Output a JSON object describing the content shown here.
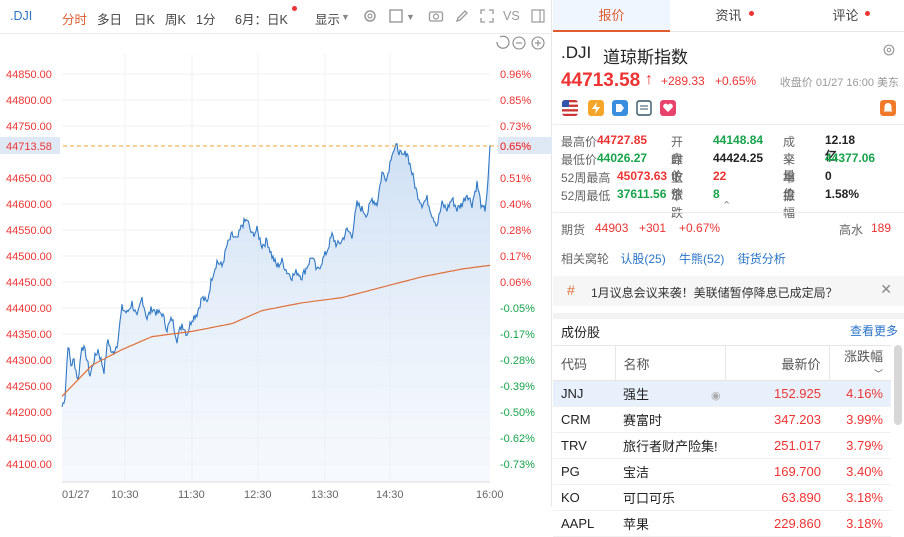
{
  "toolbar": {
    "symbol": ".DJI",
    "items": [
      "分时",
      "多日",
      "日K",
      "周K",
      "1分",
      "6月：日K",
      "显示",
      "VS"
    ]
  },
  "chart": {
    "left_axis": [
      "44850.00",
      "44800.00",
      "44750.00",
      "44713.58",
      "44650.00",
      "44600.00",
      "44550.00",
      "44500.00",
      "44450.00",
      "44400.00",
      "44350.00",
      "44300.00",
      "44250.00",
      "44200.00",
      "44150.00",
      "44100.00"
    ],
    "right_axis": [
      "0.96%",
      "0.85%",
      "0.73%",
      "0.65%",
      "0.51%",
      "0.40%",
      "0.28%",
      "0.17%",
      "0.06%",
      "-0.05%",
      "-0.17%",
      "-0.28%",
      "-0.39%",
      "-0.50%",
      "-0.62%",
      "-0.73%"
    ],
    "x_labels": [
      "01/27",
      "10:30",
      "11:30",
      "12:30",
      "13:30",
      "14:30",
      "16:00"
    ],
    "current": "44713.58"
  },
  "tabs": [
    "报价",
    "资讯",
    "评论"
  ],
  "quote": {
    "symbol": ".DJI",
    "name": "道琼斯指数",
    "price": "44713.58",
    "change": "+289.33",
    "pct": "+0.65%",
    "stamp": "收盘价 01/27 16:00 美东"
  },
  "stats": {
    "high_lbl": "最高价",
    "high": "44727.85",
    "open_lbl": "开盘价",
    "open": "44148.84",
    "vol_lbl": "成交量",
    "vol": "12.18亿",
    "low_lbl": "最低价",
    "low": "44026.27",
    "prev_lbl": "昨收价",
    "prev": "44424.25",
    "avg_lbl": "平均价",
    "avg": "44377.06",
    "w52h_lbl": "52周最高",
    "w52h": "45073.63",
    "up_lbl": "上　涨",
    "up": "22",
    "flat_lbl": "平　盘",
    "flat": "0",
    "w52l_lbl": "52周最低",
    "w52l": "37611.56",
    "down_lbl": "下　跌",
    "down": "8",
    "amp_lbl": "振　幅",
    "amp": "1.58%"
  },
  "futures": {
    "lbl": "期货",
    "price": "44903",
    "chg": "+301",
    "pct": "+0.67%",
    "right_lbl": "高水",
    "right_val": "189"
  },
  "related": {
    "lbl": "相关窝轮",
    "links": [
      "认股(25)",
      "牛熊(52)",
      "街货分析"
    ]
  },
  "news": {
    "text": "1月议息会议来袭！美联储暂停降息已成定局？"
  },
  "components": {
    "title": "成份股",
    "more": "查看更多",
    "headers": [
      "代码",
      "名称",
      "最新价",
      "涨跌幅"
    ],
    "rows": [
      {
        "code": "JNJ",
        "name": "强生",
        "price": "152.925",
        "pct": "4.16%"
      },
      {
        "code": "CRM",
        "name": "赛富时",
        "price": "347.203",
        "pct": "3.99%"
      },
      {
        "code": "TRV",
        "name": "旅行者财产险集!",
        "price": "251.017",
        "pct": "3.79%"
      },
      {
        "code": "PG",
        "name": "宝洁",
        "price": "169.700",
        "pct": "3.40%"
      },
      {
        "code": "KO",
        "name": "可口可乐",
        "price": "63.890",
        "pct": "3.18%"
      },
      {
        "code": "AAPL",
        "name": "苹果",
        "price": "229.860",
        "pct": "3.18%"
      }
    ]
  },
  "colors": {
    "up": "#e33333",
    "down": "#17a34a",
    "accent": "#e05b2e",
    "link": "#2b74c7",
    "line": "#2f78c4",
    "avg": "#e0703a"
  }
}
